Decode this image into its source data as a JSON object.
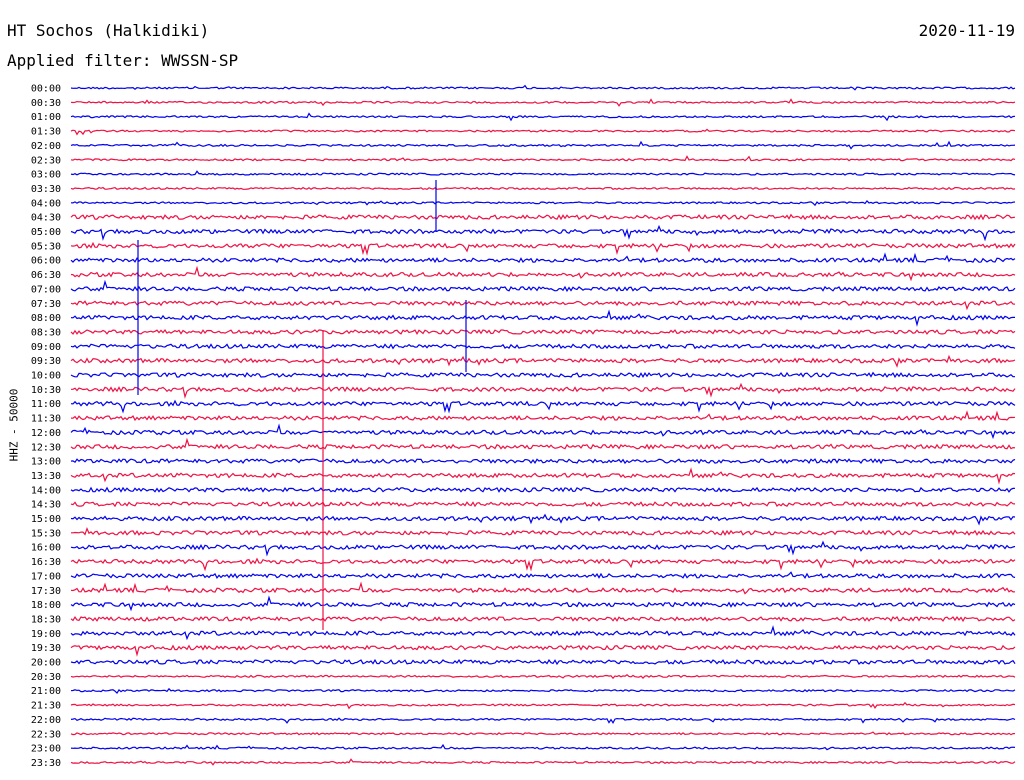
{
  "header": {
    "station": "HT Sochos (Halkidiki)",
    "date": "2020-11-19",
    "filter": "Applied filter: WWSSN-SP"
  },
  "channel_label": "HHZ - 50000",
  "colors": {
    "blue": "#0000ee",
    "red": "#ee1144"
  },
  "time_labels": [
    "00:00",
    "00:30",
    "01:00",
    "01:30",
    "02:00",
    "02:30",
    "03:00",
    "03:30",
    "04:00",
    "04:30",
    "05:00",
    "05:30",
    "06:00",
    "06:30",
    "07:00",
    "07:30",
    "08:00",
    "08:30",
    "09:00",
    "09:30",
    "10:00",
    "10:30",
    "11:00",
    "11:30",
    "12:00",
    "12:30",
    "13:00",
    "13:30",
    "14:00",
    "14:30",
    "15:00",
    "15:30",
    "16:00",
    "16:30",
    "17:00",
    "17:30",
    "18:00",
    "18:30",
    "19:00",
    "19:30",
    "20:00",
    "20:30",
    "21:00",
    "21:30",
    "22:00",
    "22:30",
    "23:00",
    "23:30"
  ]
}
